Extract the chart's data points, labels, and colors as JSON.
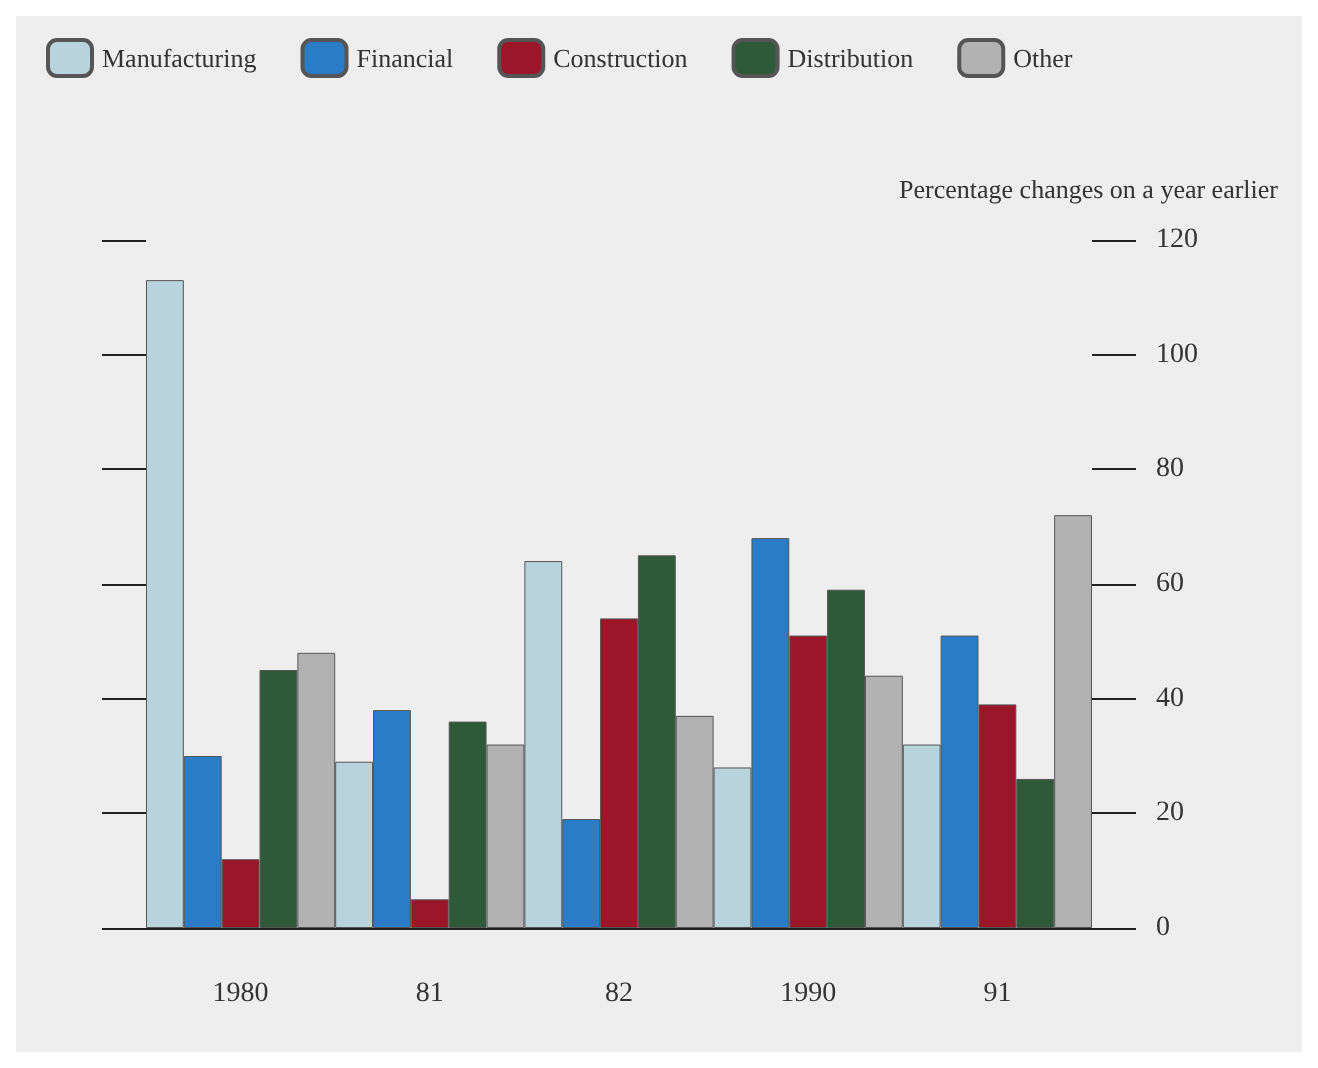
{
  "chart_data": {
    "type": "bar",
    "ylabel": "Percentage changes on a year earlier",
    "categories": [
      "1980",
      "81",
      "82",
      "1990",
      "91"
    ],
    "series": [
      {
        "name": "Manufacturing",
        "color": "#b9d3dc",
        "values": [
          113,
          29,
          64,
          28,
          32
        ]
      },
      {
        "name": "Financial",
        "color": "#2a7cc6",
        "values": [
          30,
          38,
          19,
          68,
          51
        ]
      },
      {
        "name": "Construction",
        "color": "#9a1628",
        "values": [
          12,
          5,
          54,
          51,
          39
        ]
      },
      {
        "name": "Distribution",
        "color": "#2e5a3a",
        "values": [
          45,
          36,
          65,
          59,
          26
        ]
      },
      {
        "name": "Other",
        "color": "#b2b2b2",
        "values": [
          48,
          32,
          37,
          44,
          72
        ]
      }
    ],
    "ylim": [
      0,
      120
    ],
    "yticks": [
      0,
      20,
      40,
      60,
      80,
      100,
      120
    ],
    "grid": false,
    "legend": "top left"
  }
}
